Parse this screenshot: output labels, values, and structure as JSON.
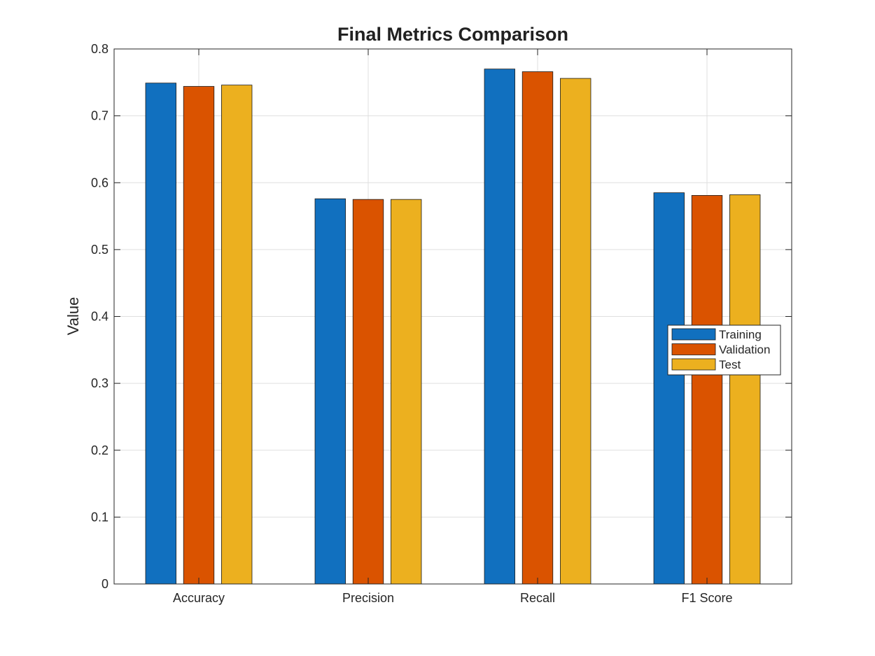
{
  "chart_data": {
    "type": "bar",
    "title": "Final Metrics Comparison",
    "xlabel": "",
    "ylabel": "Value",
    "categories": [
      "Accuracy",
      "Precision",
      "Recall",
      "F1 Score"
    ],
    "series": [
      {
        "name": "Training",
        "color": "#1170BF",
        "values": [
          0.749,
          0.576,
          0.77,
          0.585
        ]
      },
      {
        "name": "Validation",
        "color": "#DA5300",
        "values": [
          0.744,
          0.575,
          0.766,
          0.581
        ]
      },
      {
        "name": "Test",
        "color": "#ECB01F",
        "values": [
          0.746,
          0.575,
          0.756,
          0.582
        ]
      }
    ],
    "ylim": [
      0,
      0.8
    ],
    "yticks": [
      0,
      0.1,
      0.2,
      0.3,
      0.4,
      0.5,
      0.6,
      0.7,
      0.8
    ],
    "ytick_labels": [
      "0",
      "0.1",
      "0.2",
      "0.3",
      "0.4",
      "0.5",
      "0.6",
      "0.7",
      "0.8"
    ],
    "grid": true,
    "legend_position": "right",
    "colors": {
      "background": "#ffffff",
      "grid": "#dfdfdf",
      "axis": "#262626",
      "bar_edge": "#1a1a1a"
    }
  }
}
